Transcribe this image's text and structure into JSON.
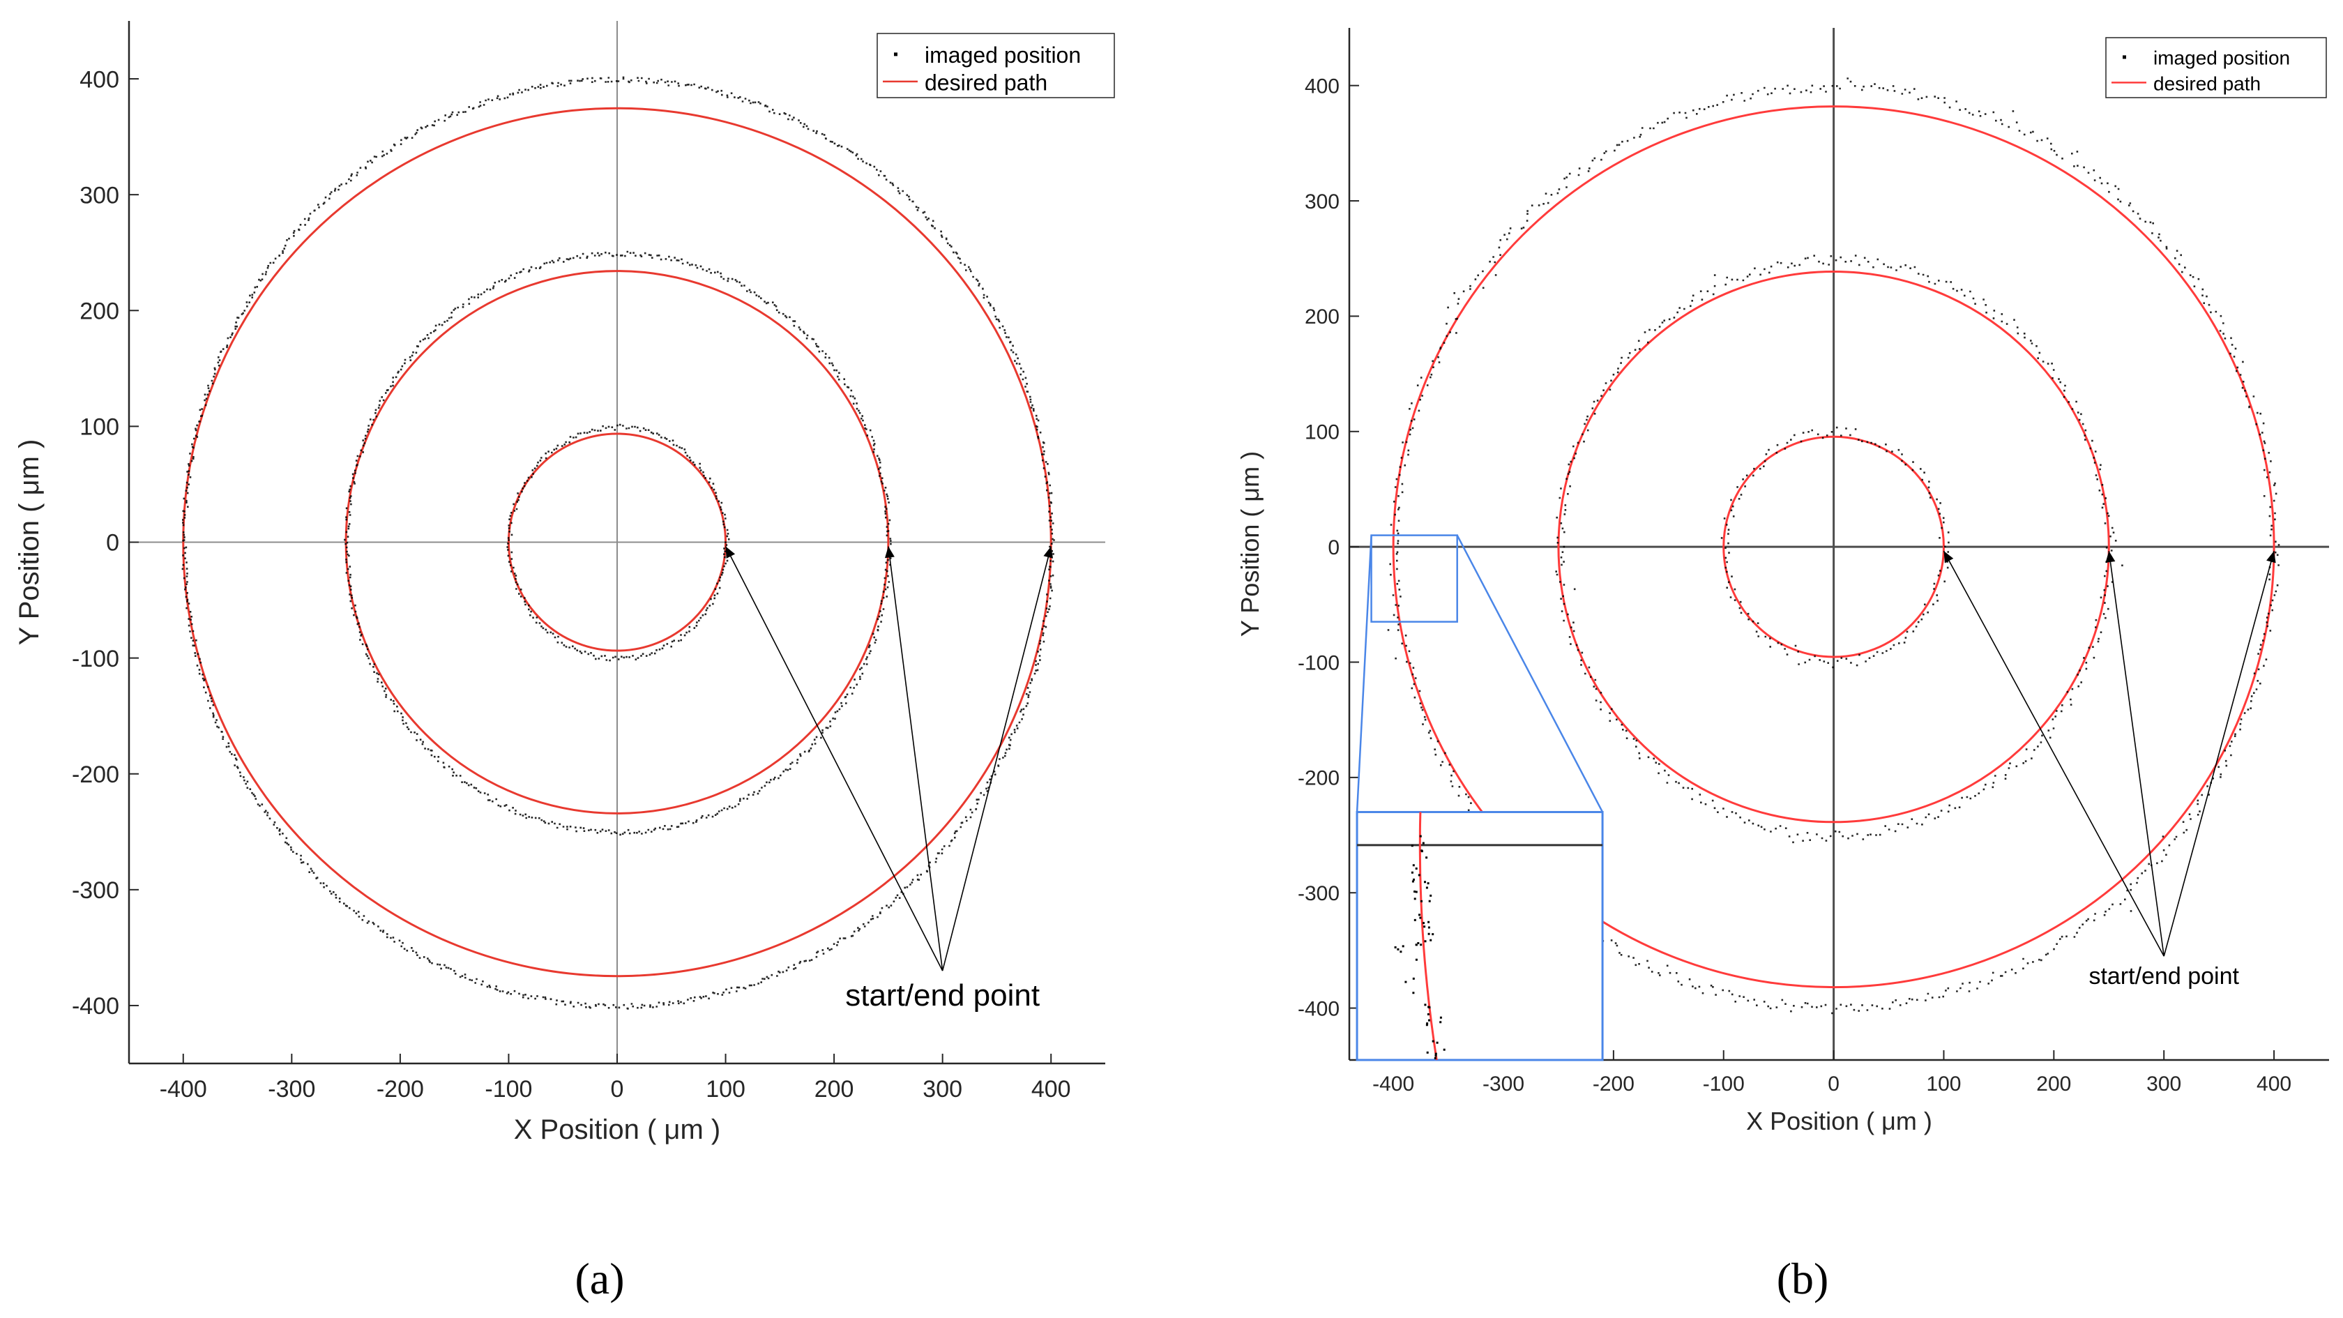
{
  "figure": {
    "panels": [
      "(a)",
      "(b)"
    ]
  },
  "chart_data": [
    {
      "id": "a",
      "type": "scatter",
      "panel_label": "(a)",
      "xlabel": "X Position ( μm )",
      "ylabel": "Y Position ( μm )",
      "xlim": [
        -450,
        450
      ],
      "ylim": [
        -450,
        450
      ],
      "xticks": [
        "-400",
        "-300",
        "-200",
        "-100",
        "0",
        "100",
        "200",
        "300",
        "400"
      ],
      "yticks": [
        "-400",
        "-300",
        "-200",
        "-100",
        "0",
        "100",
        "200",
        "300",
        "400"
      ],
      "legend": {
        "placement": "top-right",
        "entries": [
          "imaged position",
          "desired path"
        ]
      },
      "series": [
        {
          "name": "imaged position",
          "kind": "points",
          "color": "#000000",
          "circles": [
            {
              "cx": 0,
              "cy": 0,
              "r": 100
            },
            {
              "cx": 0,
              "cy": 0,
              "r": 250
            },
            {
              "cx": 0,
              "cy": 0,
              "r": 400
            }
          ]
        },
        {
          "name": "desired path",
          "kind": "line",
          "color": "#e8392f",
          "circles": [
            {
              "cx": 0,
              "cy": 0,
              "r": 100
            },
            {
              "cx": 0,
              "cy": 0,
              "r": 250
            },
            {
              "cx": 0,
              "cy": 0,
              "r": 400
            }
          ]
        }
      ],
      "annotation": {
        "text": "start/end point",
        "anchor": [
          300,
          -370
        ],
        "targets": [
          [
            100,
            0
          ],
          [
            250,
            0
          ],
          [
            400,
            0
          ]
        ]
      }
    },
    {
      "id": "b",
      "type": "scatter",
      "panel_label": "(b)",
      "xlabel": "X Position ( μm )",
      "ylabel": "Y Position ( μm )",
      "xlim": [
        -440,
        450
      ],
      "ylim": [
        -445,
        450
      ],
      "xticks": [
        "-400",
        "-300",
        "-200",
        "-100",
        "0",
        "100",
        "200",
        "300",
        "400"
      ],
      "yticks": [
        "-400",
        "-300",
        "-200",
        "-100",
        "0",
        "100",
        "200",
        "300",
        "400"
      ],
      "legend": {
        "placement": "top-right",
        "entries": [
          "imaged position",
          "desired path"
        ]
      },
      "series": [
        {
          "name": "imaged position",
          "kind": "points",
          "color": "#000000",
          "circles": [
            {
              "cx": 0,
              "cy": 0,
              "r": 100
            },
            {
              "cx": 0,
              "cy": 0,
              "r": 250
            },
            {
              "cx": 0,
              "cy": 0,
              "r": 400
            }
          ]
        },
        {
          "name": "desired path",
          "kind": "line",
          "color": "#ff3b3b",
          "circles": [
            {
              "cx": 0,
              "cy": 0,
              "r": 100
            },
            {
              "cx": 0,
              "cy": 0,
              "r": 250
            },
            {
              "cx": 0,
              "cy": 0,
              "r": 400
            }
          ]
        }
      ],
      "zoom": {
        "region_x": [
          -420,
          -342
        ],
        "region_y": [
          -65,
          10
        ],
        "inset_x": [
          -433,
          -210
        ],
        "inset_y": [
          -445,
          -230
        ]
      },
      "annotation": {
        "text": "start/end point",
        "anchor": [
          300,
          -355
        ],
        "targets": [
          [
            100,
            0
          ],
          [
            250,
            0
          ],
          [
            400,
            0
          ]
        ]
      }
    }
  ],
  "colors": {
    "axis": "#262626",
    "zero_line_a": "#8c8c8c",
    "zero_line_b": "#4d4d4d",
    "inset_frame": "#4a86e8",
    "legend_border": "#262626"
  }
}
